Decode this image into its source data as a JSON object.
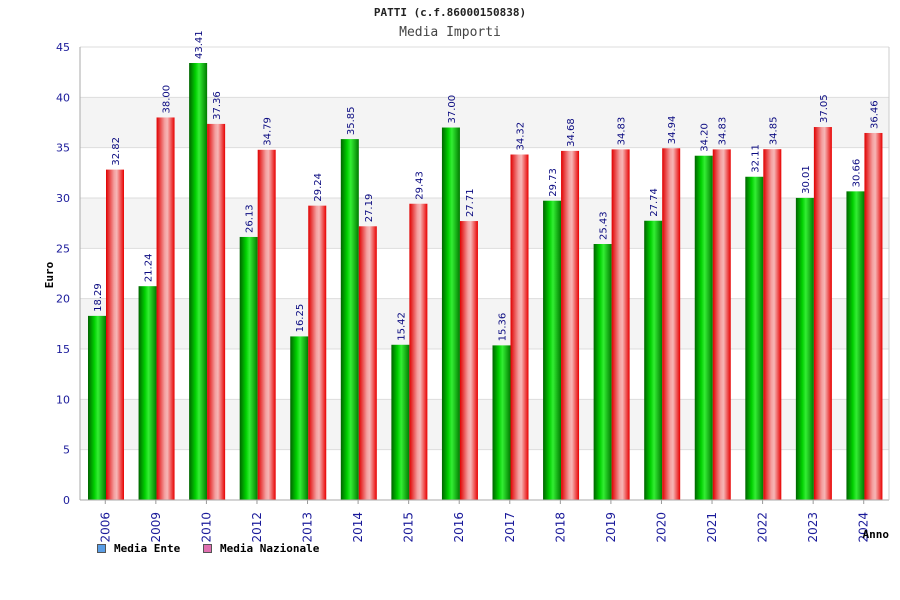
{
  "chart_data": {
    "type": "bar",
    "title": "PATTI (c.f.86000150838)",
    "subtitle": "Media Importi",
    "xlabel": "Anno",
    "ylabel": "Euro",
    "ylim": [
      0,
      45
    ],
    "yticks": [
      0,
      5,
      10,
      15,
      20,
      25,
      30,
      35,
      40,
      45
    ],
    "grid": true,
    "categories": [
      "2006",
      "2009",
      "2010",
      "2012",
      "2013",
      "2014",
      "2015",
      "2016",
      "2017",
      "2018",
      "2019",
      "2020",
      "2021",
      "2022",
      "2023",
      "2024"
    ],
    "series": [
      {
        "name": "Media Ente",
        "color": "#00aa00",
        "legend_color": "#5a9ee6",
        "values": [
          18.29,
          21.24,
          43.41,
          26.13,
          16.25,
          35.85,
          15.42,
          37.0,
          15.36,
          29.73,
          25.43,
          27.74,
          34.2,
          32.11,
          30.01,
          30.66
        ],
        "labels": [
          "18.29",
          "21.24",
          "43.41",
          "26.13",
          "16.25",
          "35.85",
          "15.42",
          "37.00",
          "15.36",
          "29.73",
          "25.43",
          "27.74",
          "34.20",
          "32.11",
          "30.01",
          "30.66"
        ]
      },
      {
        "name": "Media Nazionale",
        "color": "#ee2222",
        "legend_color": "#e070b0",
        "values": [
          32.82,
          38.0,
          37.36,
          34.79,
          29.24,
          27.19,
          29.43,
          27.71,
          34.32,
          34.68,
          34.83,
          34.94,
          34.83,
          34.85,
          37.05,
          36.46
        ],
        "labels": [
          "32.82",
          "38.00",
          "37.36",
          "34.79",
          "29.24",
          "27.19",
          "29.43",
          "27.71",
          "34.32",
          "34.68",
          "34.83",
          "34.94",
          "34.83",
          "34.85",
          "37.05",
          "36.46"
        ]
      }
    ],
    "legend_position": "bottom-left"
  }
}
